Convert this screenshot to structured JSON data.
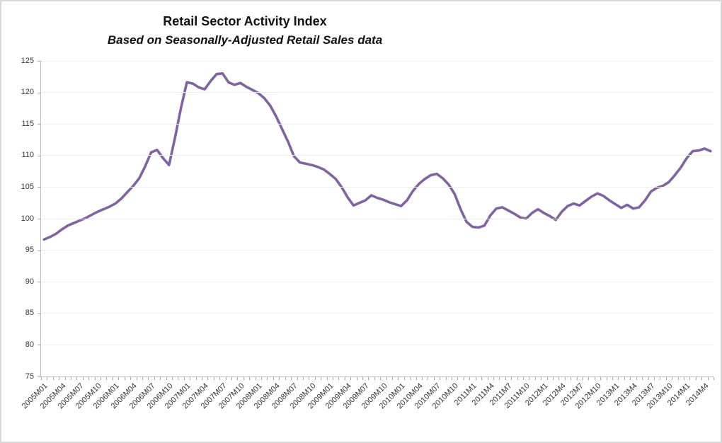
{
  "frame": {
    "background": "#ffffff",
    "border_color": "#d9d9d9"
  },
  "header": {
    "title": "Retail Sector Activity Index",
    "subtitle": "Based on Seasonally-Adjusted Retail Sales data"
  },
  "chart_data": {
    "type": "line",
    "title": "Retail Sector Activity Index",
    "subtitle": "Based on Seasonally-Adjusted Retail Sales data",
    "xlabel": "",
    "ylabel": "",
    "legend": "none",
    "grid": "horizontal",
    "ylim": [
      75,
      125
    ],
    "yticks": [
      75,
      80,
      85,
      90,
      95,
      100,
      105,
      110,
      115,
      120,
      125
    ],
    "line_color": "#8064A2",
    "grid_color": "#efeeea",
    "axis_color": "#bfbfbf",
    "tick_color": "#a6a6a6",
    "label_color": "#363636",
    "x_tick_labels": [
      "2005M01",
      "2005M04",
      "2005M07",
      "2005M10",
      "2006M01",
      "2006M04",
      "2006M07",
      "2006M10",
      "2007M01",
      "2007M04",
      "2007M07",
      "2007M10",
      "2008M01",
      "2008M04",
      "2008M07",
      "2008M10",
      "2009M01",
      "2009M04",
      "2009M07",
      "2009M10",
      "2010M01",
      "2010M04",
      "2010M07",
      "2010M10",
      "2011M1",
      "2011M4",
      "2011M7",
      "2011M10",
      "2012M1",
      "2012M4",
      "2012M7",
      "2012M10",
      "2013M1",
      "2013M4",
      "2013M7",
      "2013M10",
      "2014M1",
      "2014M4"
    ],
    "x": [
      "2005M01",
      "2005M02",
      "2005M03",
      "2005M04",
      "2005M05",
      "2005M06",
      "2005M07",
      "2005M08",
      "2005M09",
      "2005M10",
      "2005M11",
      "2005M12",
      "2006M01",
      "2006M02",
      "2006M03",
      "2006M04",
      "2006M05",
      "2006M06",
      "2006M07",
      "2006M08",
      "2006M09",
      "2006M10",
      "2006M11",
      "2006M12",
      "2007M01",
      "2007M02",
      "2007M03",
      "2007M04",
      "2007M05",
      "2007M06",
      "2007M07",
      "2007M08",
      "2007M09",
      "2007M10",
      "2007M11",
      "2007M12",
      "2008M01",
      "2008M02",
      "2008M03",
      "2008M04",
      "2008M05",
      "2008M06",
      "2008M07",
      "2008M08",
      "2008M09",
      "2008M10",
      "2008M11",
      "2008M12",
      "2009M01",
      "2009M02",
      "2009M03",
      "2009M04",
      "2009M05",
      "2009M06",
      "2009M07",
      "2009M08",
      "2009M09",
      "2009M10",
      "2009M11",
      "2009M12",
      "2010M01",
      "2010M02",
      "2010M03",
      "2010M04",
      "2010M05",
      "2010M06",
      "2010M07",
      "2010M08",
      "2010M09",
      "2010M10",
      "2010M11",
      "2010M12",
      "2011M1",
      "2011M2",
      "2011M3",
      "2011M4",
      "2011M5",
      "2011M6",
      "2011M7",
      "2011M8",
      "2011M9",
      "2011M10",
      "2011M11",
      "2011M12",
      "2012M1",
      "2012M2",
      "2012M3",
      "2012M4",
      "2012M5",
      "2012M6",
      "2012M7",
      "2012M8",
      "2012M9",
      "2012M10",
      "2012M11",
      "2012M12",
      "2013M1",
      "2013M2",
      "2013M3",
      "2013M4",
      "2013M5",
      "2013M6",
      "2013M7",
      "2013M8",
      "2013M9",
      "2013M10",
      "2013M11",
      "2013M12",
      "2014M1",
      "2014M2",
      "2014M3",
      "2014M4",
      "2014M5"
    ],
    "values": [
      96.7,
      97.1,
      97.6,
      98.3,
      98.9,
      99.3,
      99.7,
      100.1,
      100.6,
      101.1,
      101.5,
      101.9,
      102.4,
      103.2,
      104.2,
      105.2,
      106.4,
      108.3,
      110.5,
      110.9,
      109.6,
      108.5,
      112.8,
      117.5,
      121.6,
      121.4,
      120.8,
      120.5,
      121.8,
      122.9,
      123.0,
      121.6,
      121.2,
      121.5,
      120.9,
      120.4,
      119.9,
      119.1,
      117.9,
      116.2,
      114.2,
      112.2,
      109.9,
      108.9,
      108.7,
      108.5,
      108.2,
      107.8,
      107.1,
      106.3,
      105.0,
      103.4,
      102.1,
      102.5,
      102.9,
      103.7,
      103.3,
      103.0,
      102.6,
      102.3,
      102.0,
      102.9,
      104.4,
      105.5,
      106.3,
      106.9,
      107.1,
      106.4,
      105.4,
      103.9,
      101.5,
      99.5,
      98.7,
      98.6,
      98.9,
      100.5,
      101.6,
      101.8,
      101.3,
      100.8,
      100.2,
      100.0,
      100.9,
      101.5,
      100.9,
      100.4,
      99.8,
      101.1,
      102.0,
      102.4,
      102.1,
      102.8,
      103.5,
      104.0,
      103.6,
      102.9,
      102.3,
      101.7,
      102.2,
      101.6,
      101.8,
      102.9,
      104.3,
      104.9,
      105.2,
      105.8,
      106.9,
      108.1,
      109.6,
      110.7,
      110.8,
      111.1,
      110.7
    ]
  }
}
